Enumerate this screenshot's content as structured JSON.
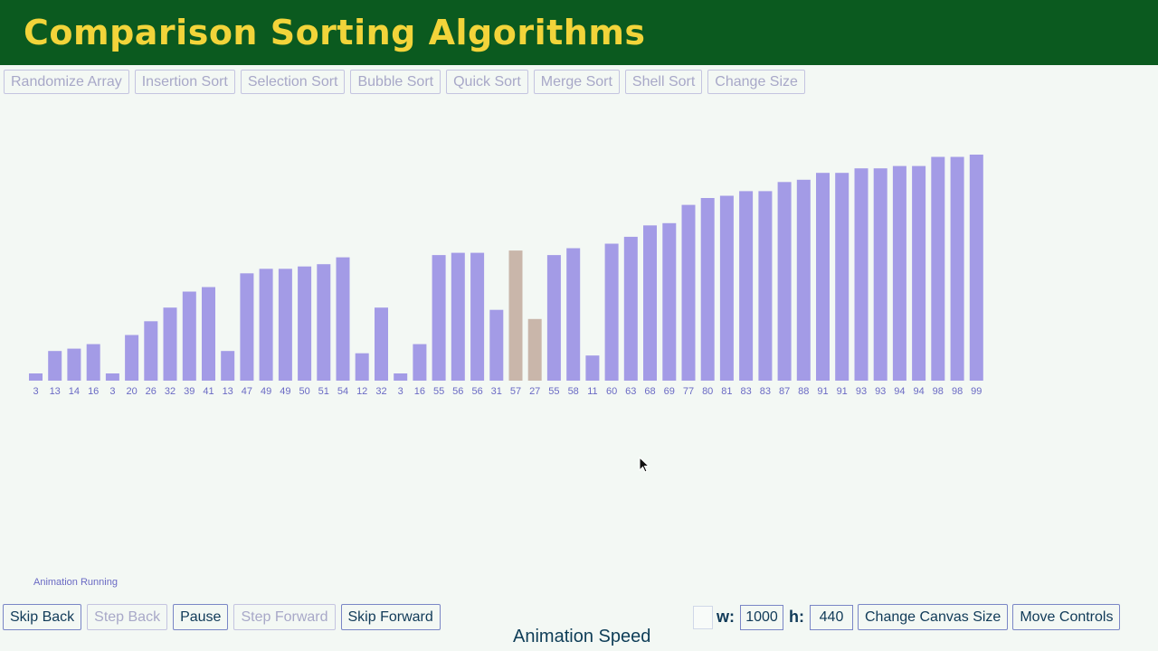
{
  "header": {
    "title": "Comparison Sorting Algorithms",
    "bg_color": "#0b5a1f",
    "title_color": "#f2d43a"
  },
  "algorithm_buttons": [
    "Randomize Array",
    "Insertion Sort",
    "Selection Sort",
    "Bubble Sort",
    "Quick Sort",
    "Merge Sort",
    "Shell Sort",
    "Change Size"
  ],
  "array": {
    "values": [
      3,
      13,
      14,
      16,
      3,
      20,
      26,
      32,
      39,
      41,
      13,
      47,
      49,
      49,
      50,
      51,
      54,
      12,
      32,
      3,
      16,
      55,
      56,
      56,
      31,
      57,
      27,
      55,
      58,
      11,
      60,
      63,
      68,
      69,
      77,
      80,
      81,
      83,
      83,
      87,
      88,
      91,
      91,
      93,
      93,
      94,
      94,
      98,
      98,
      99
    ],
    "highlighted_indices": [
      25,
      26
    ],
    "bar_color": "#a39be6",
    "highlight_color": "#c9b6aa",
    "label_color": "#6a6ac4",
    "max_value": 99
  },
  "status": {
    "text": "Animation Running"
  },
  "playback": {
    "skip_back": "Skip Back",
    "step_back": "Step Back",
    "pause": "Pause",
    "step_forward": "Step Forward",
    "skip_forward": "Skip Forward"
  },
  "canvas": {
    "w_label": "w:",
    "w_value": "1000",
    "h_label": "h:",
    "h_value": "440",
    "change_size": "Change Canvas Size",
    "move_controls": "Move Controls"
  },
  "speed": {
    "label": "Animation Speed"
  }
}
